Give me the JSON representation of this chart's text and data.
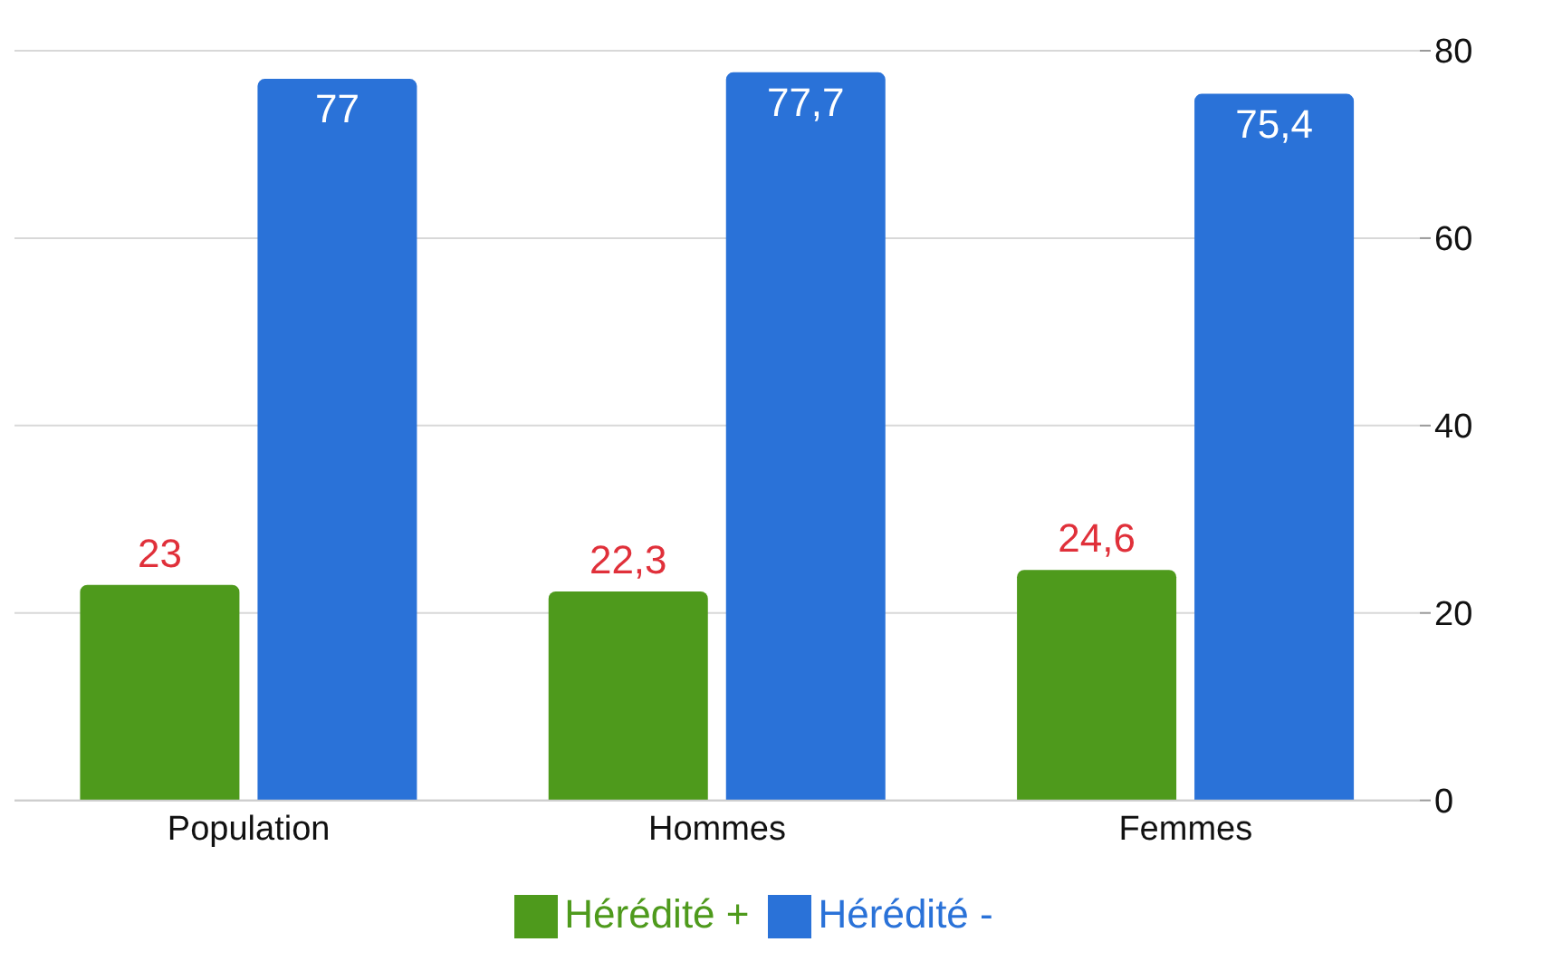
{
  "chart_data": {
    "type": "bar",
    "categories": [
      "Population",
      "Hommes",
      "Femmes"
    ],
    "series": [
      {
        "name": "Hérédité +",
        "color": "#4e9a1c",
        "values": [
          23,
          22.3,
          24.6
        ],
        "value_labels": [
          "23",
          "22,3",
          "24,6"
        ]
      },
      {
        "name": "Hérédité -",
        "color": "#2a72d8",
        "values": [
          77,
          77.7,
          75.4
        ],
        "value_labels": [
          "77",
          "77,7",
          "75,4"
        ]
      }
    ],
    "ylim": [
      0,
      80
    ],
    "yticks": [
      0,
      20,
      40,
      60,
      80
    ],
    "grid": "y",
    "legend": "bottom"
  }
}
